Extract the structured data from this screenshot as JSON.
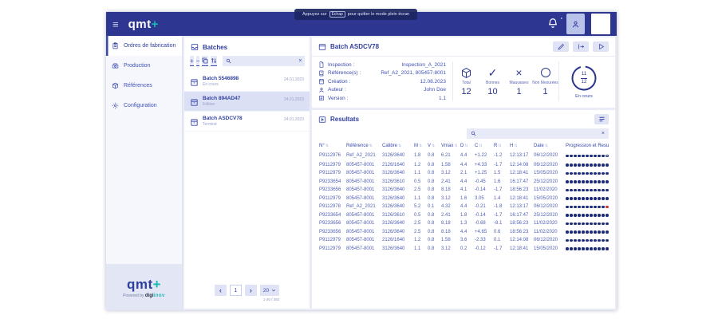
{
  "colors": {
    "topbar": "#2d3691",
    "accent": "#3949ab",
    "teal": "#19b8b4",
    "dot_filled": "#1b2a7b",
    "dot_empty": "#c9cfec",
    "red": "#d32f2f"
  },
  "fullscreen_tooltip": {
    "prefix": "Appuyez sur",
    "key": "Échap",
    "suffix": "pour quitter le mode plein écran"
  },
  "topbar": {
    "logo": "qmt",
    "logo_plus": "+"
  },
  "sidebar": {
    "items": [
      {
        "label": "Ordres de fabrication",
        "icon": "orders",
        "active": true
      },
      {
        "label": "Production",
        "icon": "production",
        "active": false
      },
      {
        "label": "Références",
        "icon": "references",
        "active": false
      },
      {
        "label": "Configuration",
        "icon": "settings",
        "active": false
      }
    ],
    "logo": {
      "text": "qmt",
      "plus": "+",
      "powered": "Powered by",
      "brand1": "digi",
      "brand2": "inov"
    }
  },
  "batches": {
    "title": "Batches",
    "search_placeholder": "",
    "items": [
      {
        "name": "Batch 5546898",
        "status": "En cours",
        "date": "24.01.2023",
        "selected": false
      },
      {
        "name": "Batch 894AD47",
        "status": "Edition",
        "date": "24.01.2023",
        "selected": true
      },
      {
        "name": "Batch ASDCV78",
        "status": "Terminé",
        "date": "24.01.2023",
        "selected": false
      }
    ],
    "pagination": {
      "page": "1",
      "page_size": "20",
      "range": "1-20 / 392"
    }
  },
  "batch": {
    "title": "Batch ASDCV78",
    "details": [
      {
        "icon": "document",
        "label": "Inspection :",
        "value": "Inspection_A_2021"
      },
      {
        "icon": "book",
        "label": "Référence(s) :",
        "value": "Ref_A2_2021, 805457-8001"
      },
      {
        "icon": "calendar",
        "label": "Création :",
        "value": "12.08.2023"
      },
      {
        "icon": "person",
        "label": "Auteur :",
        "value": "John Doe"
      },
      {
        "icon": "version",
        "label": "Version :",
        "value": "1.1"
      }
    ],
    "stats": [
      {
        "icon": "cube",
        "label": "Total",
        "value": "12"
      },
      {
        "icon": "check",
        "label": "Bonnes",
        "value": "10"
      },
      {
        "icon": "cross",
        "label": "Mauvaises",
        "value": "1"
      },
      {
        "icon": "circle",
        "label": "Non Mesurées",
        "value": "1"
      }
    ],
    "progress": {
      "current": "11",
      "total": "12",
      "label": "En cours"
    }
  },
  "results": {
    "title": "Resultats",
    "search_placeholder": "",
    "columns": [
      "N°",
      "Référence",
      "Calibre",
      "M",
      "V",
      "Vmax",
      "D",
      "C",
      "R",
      "H",
      "Date",
      "Progression et Resultat"
    ],
    "rows": [
      {
        "values": [
          "P9112976",
          "Ref_A2_2021",
          "3126/3640",
          "1.8",
          "0.8",
          "6.21",
          "4.4",
          "+1.22",
          "-1.2",
          "12:13:17",
          "06/12/2020"
        ],
        "dots": "FFFFFFFFFFOEEEEE",
        "status": "pending"
      },
      {
        "values": [
          "P9112979",
          "805457-8001",
          "2126/1640",
          "1.2",
          "0.8",
          "1.58",
          "4.4",
          "+4.33",
          "-1.7",
          "12:14:08",
          "06/12/2020"
        ],
        "dots": "FFFFFFFFFFFFFFFF",
        "status": "check"
      },
      {
        "values": [
          "P9112979",
          "805457-8001",
          "3126/3640",
          "1.1",
          "0.8",
          "3.12",
          "2.1",
          "+1.25",
          "1.5",
          "12:18:41",
          "15/05/2020"
        ],
        "dots": "FFFFFFFFFFFFFFFF",
        "status": "check"
      },
      {
        "values": [
          "P9233654",
          "805457-8001",
          "3126/3610",
          "0.5",
          "0.8",
          "2.41",
          "4.4",
          "-0.45",
          "1.6",
          "16:17:47",
          "25/12/2020"
        ],
        "dots": "FFFFFFFFFFFFFFFF",
        "status": "check"
      },
      {
        "values": [
          "P9233656",
          "805457-8001",
          "3126/3640",
          "2.5",
          "0.8",
          "8.18",
          "4.1",
          "-0.14",
          "-1.7",
          "18:56:23",
          "11/02/2020"
        ],
        "dots": "FFFFFFFFFFFFFFFF",
        "status": "check"
      },
      {
        "values": [
          "P9112979",
          "805457-8001",
          "3126/3640",
          "1.1",
          "0.8",
          "3.12",
          "1.6",
          "3.05",
          "1.4",
          "12:18:41",
          "15/05/2020"
        ],
        "dots": "FFFFFFFFFFFFFFFF",
        "status": "check"
      },
      {
        "values": [
          "P9112978",
          "Ref_A2_2021",
          "3126/3640",
          "5.2",
          "0.1",
          "4.32",
          "4.4",
          "-0.21",
          "-1.8",
          "12:13:17",
          "06/12/2020"
        ],
        "dots": "FFFFFFFFFFRRRRRF",
        "status": "cross"
      },
      {
        "values": [
          "P9233654",
          "805457-8001",
          "3126/3610",
          "0.5",
          "0.8",
          "2.41",
          "1.8",
          "-0.14",
          "-1.7",
          "16:17:47",
          "25/12/2020"
        ],
        "dots": "FFFFFFFFFFFFFFFF",
        "status": "check"
      },
      {
        "values": [
          "P9233656",
          "805457-8001",
          "3126/3640",
          "2.5",
          "0.8",
          "8.18",
          "1.3",
          "-0.68",
          "-8.1",
          "18:56:23",
          "11/02/2020"
        ],
        "dots": "FFFFFFFFFFFFFFFF",
        "status": "check"
      },
      {
        "values": [
          "P9233656",
          "805457-8001",
          "3126/3640",
          "2.5",
          "0.8",
          "8.18",
          "4.4",
          "+4.65",
          "0.6",
          "18:56:23",
          "11/02/2020"
        ],
        "dots": "FFFFFFFFFFFFFFFF",
        "status": "check"
      },
      {
        "values": [
          "P9112979",
          "805457-8001",
          "2126/1640",
          "1.2",
          "0.8",
          "1.58",
          "3.6",
          "-2.33",
          "0.1",
          "12:14:08",
          "06/12/2020"
        ],
        "dots": "FFFFFFFFFFFFFFFF",
        "status": "check"
      },
      {
        "values": [
          "P9112979",
          "805457-8001",
          "3126/3640",
          "1.1",
          "0.8",
          "3.12",
          "0.2",
          "-0.12",
          "-1.7",
          "12:18:41",
          "15/05/2020"
        ],
        "dots": "FFFFFFFFFFFFFFFF",
        "status": "check"
      }
    ]
  }
}
